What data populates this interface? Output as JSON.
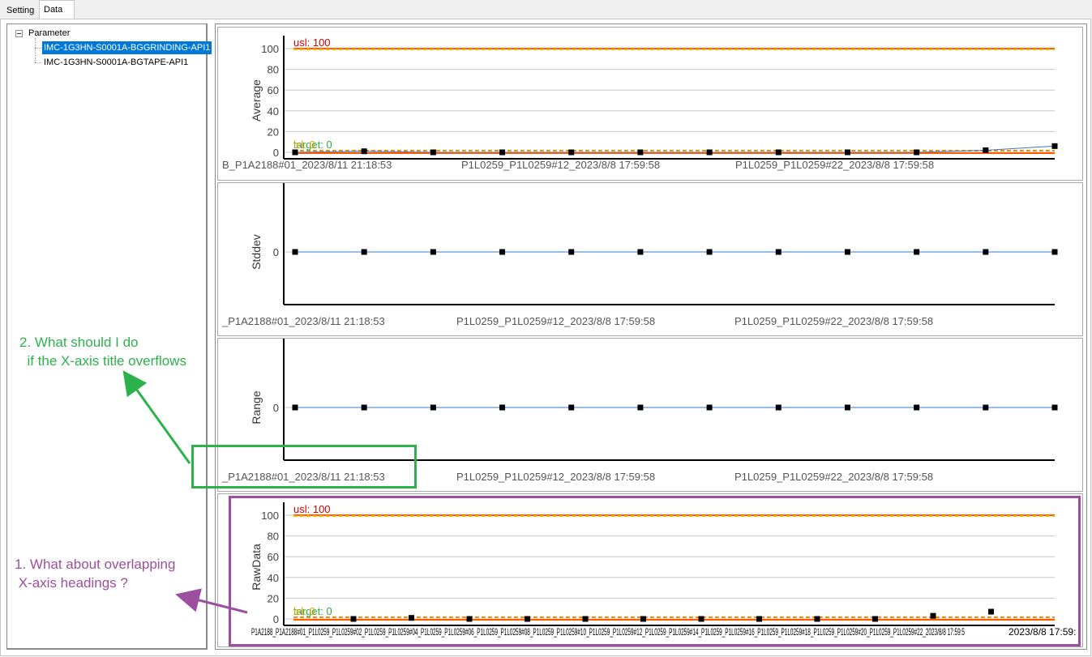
{
  "tabs": [
    {
      "label": "Setting",
      "active": false
    },
    {
      "label": "Data",
      "active": true
    }
  ],
  "tree": {
    "root_label": "Parameter",
    "items": [
      {
        "label": "IMC-1G3HN-S0001A-BGGRINDING-API1",
        "selected": true
      },
      {
        "label": "IMC-1G3HN-S0001A-BGTAPE-API1",
        "selected": false
      }
    ]
  },
  "charts": [
    {
      "ylabel": "Average",
      "yticks": [
        "100",
        "80",
        "60",
        "40",
        "20",
        "0"
      ],
      "usl_label": "usl: 100",
      "usl_overlap_label": "usl: 100",
      "lsl_label": "lsl: 0",
      "target_label": "target: 0",
      "xticks": [
        "B_P1A2188#01_2023/8/11 21:18:53",
        "P1L0259_P1L0259#12_2023/8/8 17:59:58",
        "P1L0259_P1L0259#22_2023/8/8 17:59:58"
      ]
    },
    {
      "ylabel": "Stddev",
      "yticks": [
        "0"
      ],
      "xticks": [
        "_P1A2188#01_2023/8/11 21:18:53",
        "P1L0259_P1L0259#12_2023/8/8 17:59:58",
        "P1L0259_P1L0259#22_2023/8/8 17:59:58"
      ]
    },
    {
      "ylabel": "Range",
      "yticks": [
        "0"
      ],
      "xticks": [
        "_P1A2188#01_2023/8/11 21:18:53",
        "P1L0259_P1L0259#12_2023/8/8 17:59:58",
        "P1L0259_P1L0259#22_2023/8/8 17:59:58"
      ]
    },
    {
      "ylabel": "RawData",
      "yticks": [
        "100",
        "80",
        "60",
        "40",
        "20",
        "0"
      ],
      "usl_label": "usl: 100",
      "lsl_label": "lsl: 0",
      "target_label": "target: 0",
      "overlap_xlabels": "P1A2188_P1A2188#01_P1L0259_P1L0259#02_P1L0259_P1L0259#04_P1L0259_P1L0259#06_P1L0259_P1L0259#08_P1L0259_P1L0259#10_P1L0259_P1L0259#12_P1L0259_P1L0259#14_P1L0259_P1L0259#16_P1L0259_P1L0259#18_P1L0259_P1L0259#20_P1L0259_P1L0259#22_2023/8/8 17:59:5",
      "last_label_tail": "2023/8/8 17:59:"
    }
  ],
  "annotations": {
    "green_text": "2. What should I do\n  if the X-axis title overflows",
    "purple_text": "1. What about overlapping\n X-axis headings ?",
    "green_color": "#2db14d",
    "purple_color": "#9b4f9e"
  },
  "chart_data": [
    {
      "type": "line",
      "title": "",
      "ylabel": "Average",
      "ylim": [
        0,
        100
      ],
      "series": [
        {
          "values": [
            0,
            1,
            0,
            0,
            0,
            0,
            0,
            0,
            0,
            0,
            2,
            6
          ]
        }
      ],
      "limits": {
        "usl": 100,
        "lsl": 0,
        "target": 0
      }
    },
    {
      "type": "line",
      "title": "",
      "ylabel": "Stddev",
      "series": [
        {
          "values": [
            0,
            0,
            0,
            0,
            0,
            0,
            0,
            0,
            0,
            0,
            0,
            0
          ]
        }
      ]
    },
    {
      "type": "line",
      "title": "",
      "ylabel": "Range",
      "series": [
        {
          "values": [
            0,
            0,
            0,
            0,
            0,
            0,
            0,
            0,
            0,
            0,
            0,
            0
          ]
        }
      ]
    },
    {
      "type": "scatter",
      "title": "",
      "ylabel": "RawData",
      "ylim": [
        0,
        100
      ],
      "series": [
        {
          "values": [
            0,
            1,
            0,
            0,
            0,
            0,
            0,
            0,
            0,
            0,
            3,
            7
          ]
        }
      ],
      "limits": {
        "usl": 100,
        "lsl": 0,
        "target": 0
      }
    }
  ]
}
